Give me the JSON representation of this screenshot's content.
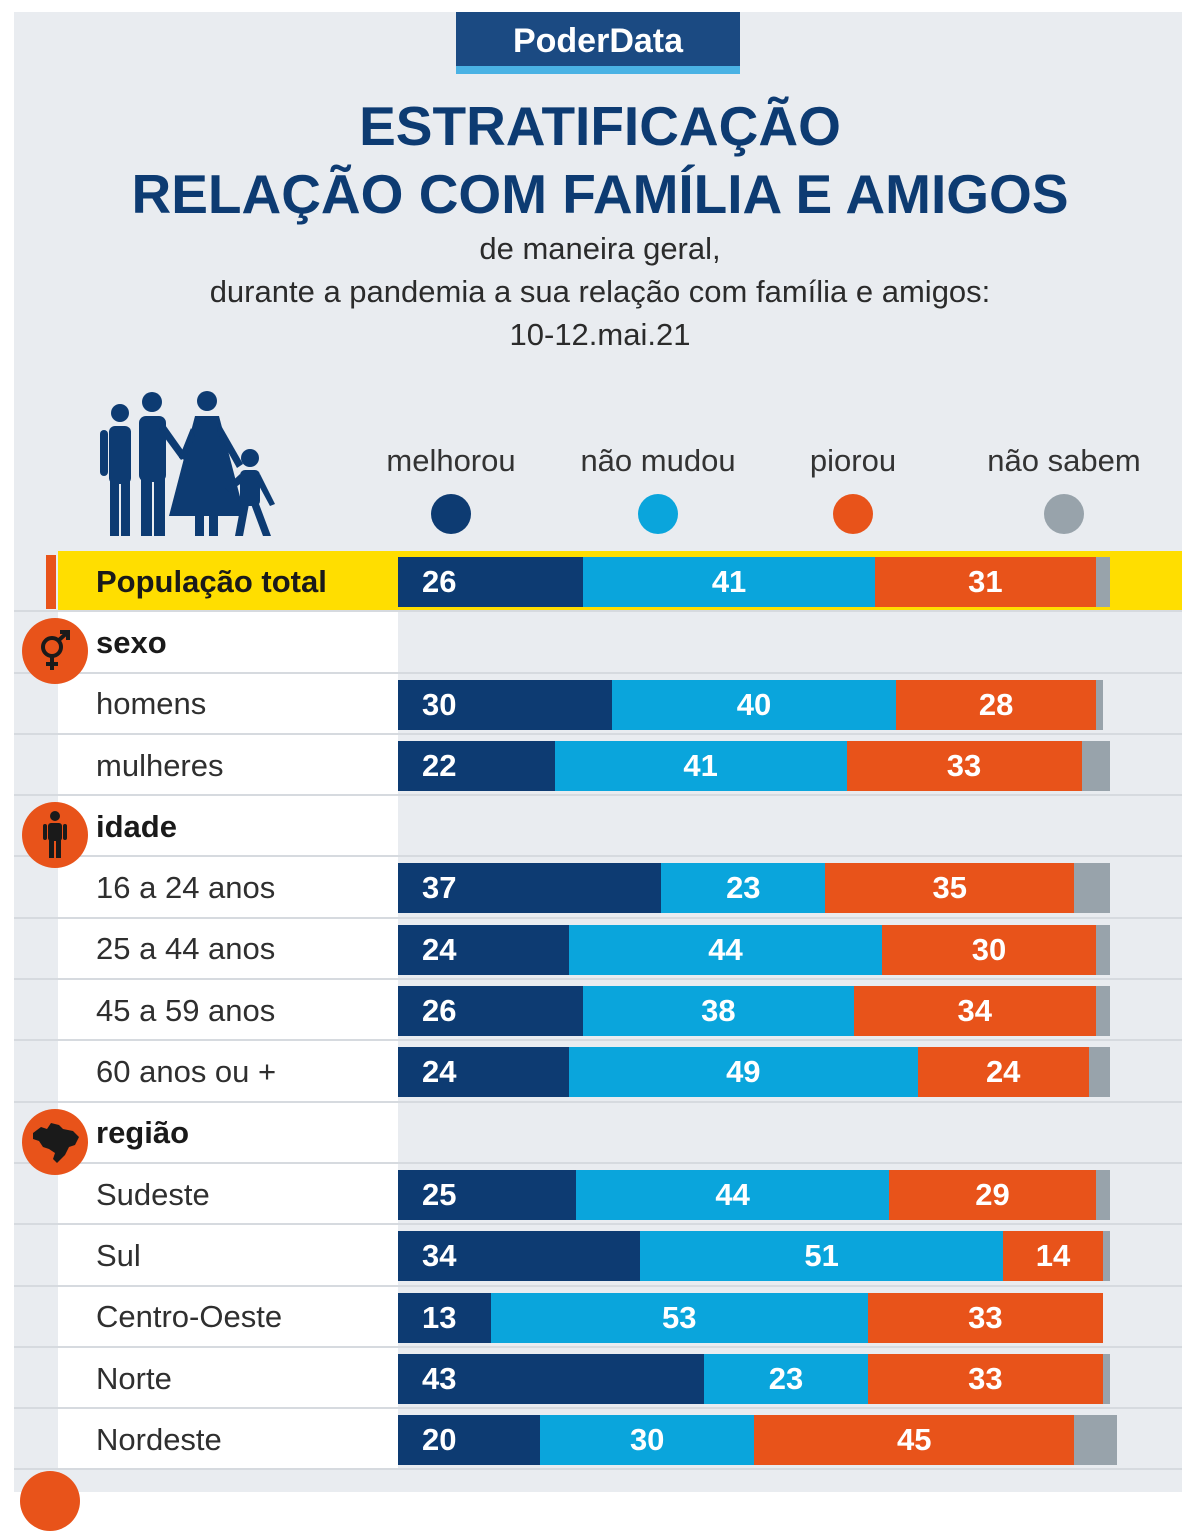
{
  "brand": "PoderData",
  "title_line1": "ESTRATIFICAÇÃO",
  "title_line2": "RELAÇÃO COM FAMÍLIA E AMIGOS",
  "subtitle_line1": "de maneira geral,",
  "subtitle_line2": "durante a pandemia a sua relação com família e amigos:",
  "subtitle_line3": "10-12.mai.21",
  "colors": {
    "melhorou": "#0d3b72",
    "nao_mudou": "#0aa5dc",
    "piorou": "#e8531a",
    "nao_sabem": "#98a3ab",
    "highlight": "#ffde00"
  },
  "legend": [
    {
      "key": "melhorou",
      "label": "melhorou"
    },
    {
      "key": "nao_mudou",
      "label": "não mudou"
    },
    {
      "key": "piorou",
      "label": "piorou"
    },
    {
      "key": "nao_sabem",
      "label": "não sabem"
    }
  ],
  "chart_data": {
    "type": "bar",
    "orientation": "horizontal",
    "stacked": true,
    "unit": "%",
    "series": [
      {
        "name": "melhorou",
        "key": "melhorou"
      },
      {
        "name": "não mudou",
        "key": "nao_mudou"
      },
      {
        "name": "piorou",
        "key": "piorou"
      },
      {
        "name": "não sabem",
        "key": "nao_sabem"
      }
    ],
    "rows": [
      {
        "kind": "total",
        "label": "População total",
        "values": {
          "melhorou": 26,
          "nao_mudou": 41,
          "piorou": 31,
          "nao_sabem": 2
        }
      },
      {
        "kind": "section",
        "label": "sexo",
        "icon": "gender-icon"
      },
      {
        "kind": "data",
        "label": "homens",
        "values": {
          "melhorou": 30,
          "nao_mudou": 40,
          "piorou": 28,
          "nao_sabem": 1
        }
      },
      {
        "kind": "data",
        "label": "mulheres",
        "values": {
          "melhorou": 22,
          "nao_mudou": 41,
          "piorou": 33,
          "nao_sabem": 4
        }
      },
      {
        "kind": "section",
        "label": "idade",
        "icon": "person-icon"
      },
      {
        "kind": "data",
        "label": "16 a 24 anos",
        "values": {
          "melhorou": 37,
          "nao_mudou": 23,
          "piorou": 35,
          "nao_sabem": 5
        }
      },
      {
        "kind": "data",
        "label": "25 a 44 anos",
        "values": {
          "melhorou": 24,
          "nao_mudou": 44,
          "piorou": 30,
          "nao_sabem": 2
        }
      },
      {
        "kind": "data",
        "label": "45 a 59 anos",
        "values": {
          "melhorou": 26,
          "nao_mudou": 38,
          "piorou": 34,
          "nao_sabem": 2
        }
      },
      {
        "kind": "data",
        "label": "60 anos ou +",
        "values": {
          "melhorou": 24,
          "nao_mudou": 49,
          "piorou": 24,
          "nao_sabem": 3
        }
      },
      {
        "kind": "section",
        "label": "região",
        "icon": "brazil-map-icon"
      },
      {
        "kind": "data",
        "label": "Sudeste",
        "values": {
          "melhorou": 25,
          "nao_mudou": 44,
          "piorou": 29,
          "nao_sabem": 2
        }
      },
      {
        "kind": "data",
        "label": "Sul",
        "values": {
          "melhorou": 34,
          "nao_mudou": 51,
          "piorou": 14,
          "nao_sabem": 1
        }
      },
      {
        "kind": "data",
        "label": "Centro-Oeste",
        "values": {
          "melhorou": 13,
          "nao_mudou": 53,
          "piorou": 33,
          "nao_sabem": 0
        }
      },
      {
        "kind": "data",
        "label": "Norte",
        "values": {
          "melhorou": 43,
          "nao_mudou": 23,
          "piorou": 33,
          "nao_sabem": 1
        }
      },
      {
        "kind": "data",
        "label": "Nordeste",
        "values": {
          "melhorou": 20,
          "nao_mudou": 30,
          "piorou": 45,
          "nao_sabem": 6
        }
      }
    ]
  }
}
